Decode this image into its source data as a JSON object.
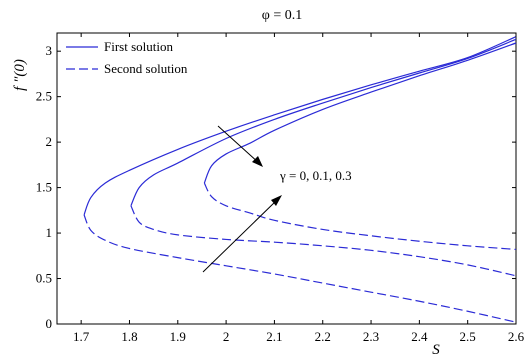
{
  "chart_data": {
    "type": "line",
    "title": "φ = 0.1",
    "xlabel": "S",
    "ylabel": "f ″(0)",
    "xlim": [
      1.65,
      2.6
    ],
    "ylim": [
      0,
      3.2
    ],
    "x_ticks": [
      "1.7",
      "1.8",
      "1.9",
      "2",
      "2.1",
      "2.2",
      "2.3",
      "2.4",
      "2.5",
      "2.6"
    ],
    "y_ticks": [
      "0",
      "0.5",
      "1",
      "1.5",
      "2",
      "2.5",
      "3"
    ],
    "grid": false,
    "legend_position": "top-left",
    "legend": [
      {
        "label": "First solution",
        "style": "solid"
      },
      {
        "label": "Second solution",
        "style": "dashed"
      }
    ],
    "annotation": "γ = 0, 0.1, 0.3",
    "line_color": "#2b2bd6",
    "series": [
      {
        "gamma": "0",
        "first_solution": {
          "x": [
            1.706,
            1.72,
            1.75,
            1.8,
            1.9,
            2.0,
            2.1,
            2.2,
            2.3,
            2.4,
            2.5,
            2.6
          ],
          "y": [
            1.2,
            1.39,
            1.55,
            1.69,
            1.92,
            2.12,
            2.3,
            2.47,
            2.63,
            2.78,
            2.93,
            3.16
          ]
        },
        "second_solution": {
          "x": [
            1.706,
            1.72,
            1.75,
            1.8,
            1.9,
            2.0,
            2.1,
            2.2,
            2.3,
            2.4,
            2.5,
            2.6
          ],
          "y": [
            1.2,
            1.03,
            0.92,
            0.83,
            0.73,
            0.64,
            0.55,
            0.45,
            0.35,
            0.25,
            0.14,
            0.02
          ]
        }
      },
      {
        "gamma": "0.1",
        "first_solution": {
          "x": [
            1.803,
            1.82,
            1.85,
            1.9,
            2.0,
            2.1,
            2.2,
            2.3,
            2.4,
            2.5,
            2.6
          ],
          "y": [
            1.3,
            1.5,
            1.64,
            1.77,
            2.04,
            2.25,
            2.43,
            2.6,
            2.76,
            2.92,
            3.13
          ]
        },
        "second_solution": {
          "x": [
            1.803,
            1.82,
            1.85,
            1.9,
            2.0,
            2.1,
            2.2,
            2.3,
            2.4,
            2.5,
            2.6
          ],
          "y": [
            1.3,
            1.12,
            1.04,
            0.98,
            0.93,
            0.9,
            0.86,
            0.81,
            0.74,
            0.65,
            0.53
          ]
        }
      },
      {
        "gamma": "0.3",
        "first_solution": {
          "x": [
            1.955,
            1.97,
            2.0,
            2.05,
            2.1,
            2.2,
            2.3,
            2.4,
            2.5,
            2.6
          ],
          "y": [
            1.55,
            1.74,
            1.87,
            1.99,
            2.13,
            2.36,
            2.55,
            2.73,
            2.9,
            3.09
          ]
        },
        "second_solution": {
          "x": [
            1.955,
            1.97,
            2.0,
            2.05,
            2.1,
            2.2,
            2.3,
            2.4,
            2.5,
            2.6
          ],
          "y": [
            1.55,
            1.4,
            1.3,
            1.22,
            1.14,
            1.04,
            0.97,
            0.91,
            0.86,
            0.82
          ]
        }
      }
    ]
  }
}
